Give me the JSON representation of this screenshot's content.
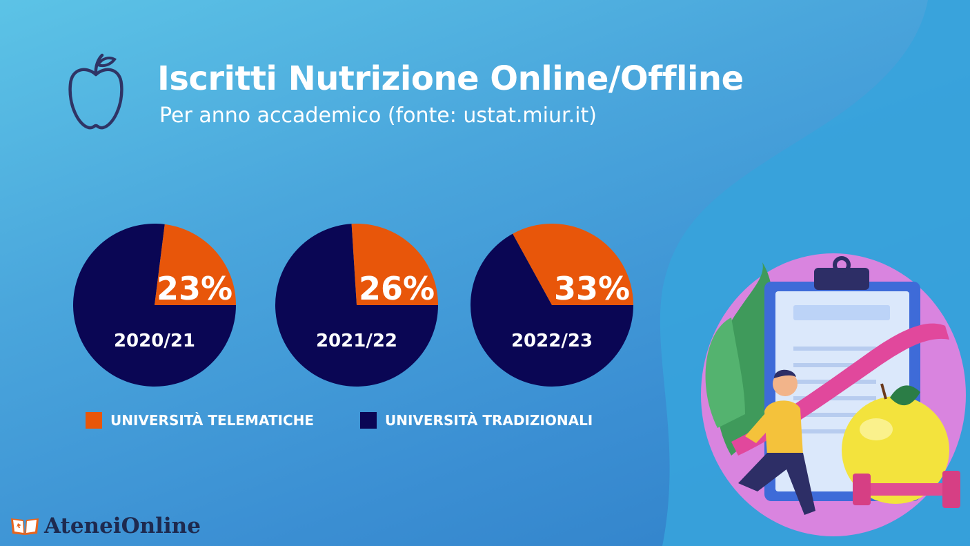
{
  "header": {
    "title": "Iscritti Nutrizione Online/Offline",
    "subtitle": "Per anno accademico (fonte: ustat.miur.it)",
    "icon": "apple-icon"
  },
  "chart_data": [
    {
      "type": "pie",
      "title": "2020/21",
      "categories": [
        "UNIVERSITÀ TELEMATICHE",
        "UNIVERSITÀ TRADIZIONALI"
      ],
      "values": [
        23,
        77
      ],
      "labels": [
        "23%",
        ""
      ]
    },
    {
      "type": "pie",
      "title": "2021/22",
      "categories": [
        "UNIVERSITÀ TELEMATICHE",
        "UNIVERSITÀ TRADIZIONALI"
      ],
      "values": [
        26,
        74
      ],
      "labels": [
        "26%",
        ""
      ]
    },
    {
      "type": "pie",
      "title": "2022/23",
      "categories": [
        "UNIVERSITÀ TELEMATICHE",
        "UNIVERSITÀ TRADIZIONALI"
      ],
      "values": [
        33,
        67
      ],
      "labels": [
        "33%",
        ""
      ]
    }
  ],
  "legend": [
    {
      "label": "UNIVERSITÀ TELEMATICHE",
      "color": "#e8560a"
    },
    {
      "label": "UNIVERSITÀ TRADIZIONALI",
      "color": "#0a0654"
    }
  ],
  "colors": {
    "online": "#e8560a",
    "offline": "#0a0654",
    "text": "#ffffff"
  },
  "illustration": "nutrition-fitness-illustration",
  "brand": {
    "name": "AteneiOnline",
    "icon": "book-icon"
  }
}
